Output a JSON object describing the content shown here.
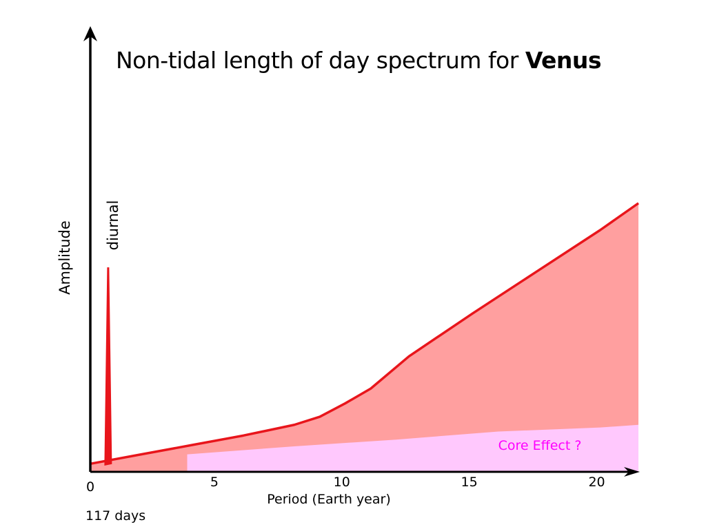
{
  "chart_data": {
    "type": "area",
    "title_text": "Non-tidal length of day spectrum for ",
    "title_bold": "Venus",
    "xlabel": "Period (Earth year)",
    "ylabel": "Amplitude",
    "x_ticks": [
      {
        "value": 0,
        "label": "0"
      },
      {
        "value": 5,
        "label": "5"
      },
      {
        "value": 10,
        "label": "10"
      },
      {
        "value": 15,
        "label": "15"
      },
      {
        "value": 20,
        "label": "20"
      }
    ],
    "xlim": [
      0,
      21.5
    ],
    "ylim": [
      0,
      10
    ],
    "origin_note": "117 days",
    "series": [
      {
        "name": "",
        "color": "#e8151b",
        "fill": "#ff9f9f",
        "x": [
          0,
          2,
          4,
          6,
          8,
          9,
          10,
          11,
          12.5,
          15,
          17.5,
          20,
          21.5
        ],
        "y": [
          0.3,
          0.65,
          1.0,
          1.35,
          1.75,
          2.05,
          2.55,
          3.1,
          4.3,
          5.9,
          7.45,
          9.0,
          10.0
        ]
      },
      {
        "name": "Core Effect ?",
        "color": "#ff00ff",
        "fill": "#ffc8fd",
        "x": [
          3.8,
          8,
          12,
          16,
          20,
          21.5
        ],
        "y": [
          0.65,
          0.95,
          1.2,
          1.5,
          1.65,
          1.75
        ]
      }
    ],
    "peaks": [
      {
        "name": "diurnal",
        "x": 0.7,
        "y": 7.6,
        "color": "#e8151b"
      }
    ],
    "grid": false,
    "legend": "none"
  }
}
